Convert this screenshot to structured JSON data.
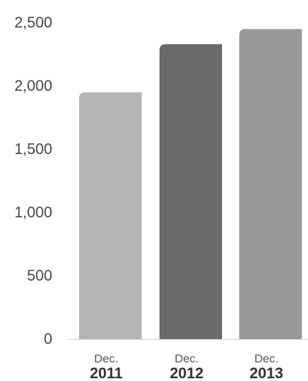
{
  "chart_data": {
    "type": "bar",
    "categories": [
      {
        "line1": "Dec.",
        "line2": "2011"
      },
      {
        "line1": "Dec.",
        "line2": "2012"
      },
      {
        "line1": "Dec.",
        "line2": "2013"
      }
    ],
    "values": [
      1950,
      2330,
      2450
    ],
    "bar_colors": [
      "#b4b4b4",
      "#6a6a6a",
      "#989898"
    ],
    "yticks": [
      0,
      500,
      1000,
      1500,
      2000,
      2500
    ],
    "ytick_labels": [
      "0",
      "500",
      "1,000",
      "1,500",
      "2,000",
      "2,500"
    ],
    "ylim": [
      0,
      2500
    ],
    "title": "",
    "xlabel": "",
    "ylabel": "",
    "grid": false,
    "legend": "none"
  }
}
